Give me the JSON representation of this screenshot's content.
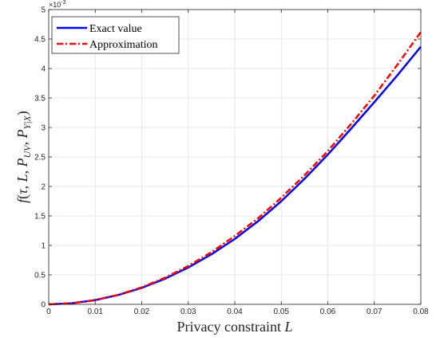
{
  "chart_data": {
    "type": "line",
    "xlabel": "Privacy constraint L",
    "ylabel": "f(τ, L, P_UV, P_Y|X)",
    "ylabel_parts": {
      "f": "f",
      "open": "(",
      "tau": "τ",
      "c1": ", ",
      "L": "L",
      "c2": ", ",
      "P1": "P",
      "sub1": "UV",
      "c3": ", ",
      "P2": "P",
      "sub2": "Y|X",
      "close": ")"
    },
    "xlim": [
      0,
      0.08
    ],
    "ylim": [
      0,
      0.005
    ],
    "y_exponent_label": "×10",
    "y_exponent_power": "-3",
    "x_ticks": [
      "0",
      "0.01",
      "0.02",
      "0.03",
      "0.04",
      "0.05",
      "0.06",
      "0.07",
      "0.08"
    ],
    "y_ticks": [
      "0",
      "0.5",
      "1",
      "1.5",
      "2",
      "2.5",
      "3",
      "3.5",
      "4",
      "4.5",
      "5"
    ],
    "grid": true,
    "legend_position": "top-left",
    "x": [
      0,
      0.005,
      0.01,
      0.015,
      0.02,
      0.025,
      0.03,
      0.035,
      0.04,
      0.045,
      0.05,
      0.055,
      0.06,
      0.065,
      0.07,
      0.075,
      0.08
    ],
    "series": [
      {
        "name": "Exact value",
        "color": "#0000ff",
        "style": "solid",
        "values": [
          0,
          1.8e-05,
          7.2e-05,
          0.00016,
          0.00028,
          0.000435,
          0.000625,
          0.00085,
          0.00111,
          0.00141,
          0.00175,
          0.00213,
          0.00254,
          0.00298,
          0.00343,
          0.00389,
          0.00437
        ]
      },
      {
        "name": "Approximation",
        "color": "#ff0000",
        "style": "dashdot",
        "values": [
          0,
          1.81e-05,
          7.23e-05,
          0.000163,
          0.000289,
          0.000452,
          0.000651,
          0.000886,
          0.00116,
          0.00146,
          0.00181,
          0.00219,
          0.0026,
          0.00306,
          0.00354,
          0.00407,
          0.00462
        ]
      }
    ]
  }
}
